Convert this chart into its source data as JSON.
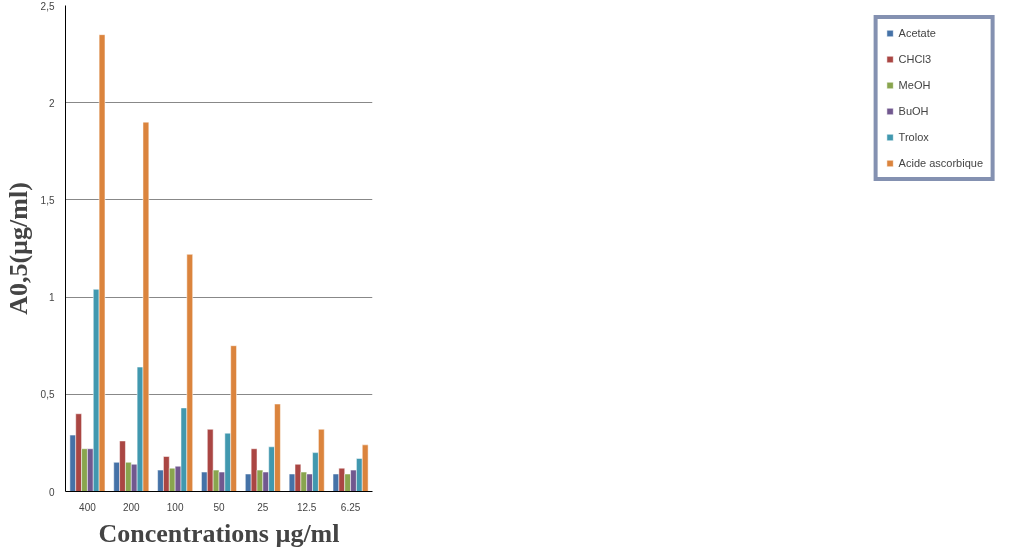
{
  "chart_data": {
    "type": "bar",
    "xlabel": "Concentrations µg/ml",
    "ylabel": "A0,5(µg/ml)",
    "categories": [
      "400",
      "200",
      "100",
      "50",
      "25",
      "12.5",
      "6.25"
    ],
    "series": [
      {
        "name": "Acetate",
        "color": "#4572a7",
        "values": [
          0.29,
          0.15,
          0.11,
          0.1,
          0.09,
          0.09,
          0.09
        ]
      },
      {
        "name": "CHCl3",
        "color": "#aa4643",
        "values": [
          0.4,
          0.26,
          0.18,
          0.32,
          0.22,
          0.14,
          0.12
        ]
      },
      {
        "name": "MeOH",
        "color": "#89a54e",
        "values": [
          0.22,
          0.15,
          0.12,
          0.11,
          0.11,
          0.1,
          0.09
        ]
      },
      {
        "name": "BuOH",
        "color": "#71588f",
        "values": [
          0.22,
          0.14,
          0.13,
          0.1,
          0.1,
          0.09,
          0.11
        ]
      },
      {
        "name": "Trolox",
        "color": "#4198af",
        "values": [
          1.04,
          0.64,
          0.43,
          0.3,
          0.23,
          0.2,
          0.17
        ]
      },
      {
        "name": "Acide ascorbique",
        "color": "#db843d",
        "values": [
          2.35,
          1.9,
          1.22,
          0.75,
          0.45,
          0.32,
          0.24
        ]
      }
    ],
    "ylim": [
      0,
      2.5
    ],
    "yticks": [
      {
        "value": 0,
        "label": "0"
      },
      {
        "value": 0.5,
        "label": "0,5"
      },
      {
        "value": 1,
        "label": "1"
      },
      {
        "value": 1.5,
        "label": "1,5"
      },
      {
        "value": 2,
        "label": "2"
      },
      {
        "value": 2.5,
        "label": "2,5"
      }
    ],
    "grid": "y",
    "legend": "right"
  }
}
